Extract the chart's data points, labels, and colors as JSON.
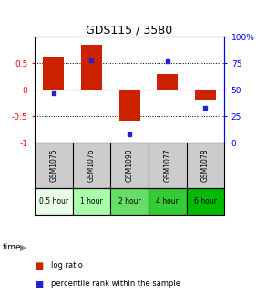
{
  "title": "GDS115 / 3580",
  "samples": [
    "GSM1075",
    "GSM1076",
    "GSM1090",
    "GSM1077",
    "GSM1078"
  ],
  "time_labels": [
    "0.5 hour",
    "1 hour",
    "2 hour",
    "4 hour",
    "6 hour"
  ],
  "time_colors": [
    "#e8ffe8",
    "#aaffaa",
    "#66dd66",
    "#33cc33",
    "#00bb00"
  ],
  "log_ratios": [
    0.62,
    0.85,
    -0.58,
    0.3,
    -0.18
  ],
  "percentile_ranks": [
    47,
    78,
    8,
    77,
    33
  ],
  "bar_color": "#cc2200",
  "dot_color": "#2222cc",
  "ylim": [
    -1.0,
    1.0
  ],
  "y_ticks_left": [
    -1,
    -0.5,
    0,
    0.5
  ],
  "y_ticks_right": [
    0,
    25,
    50,
    75,
    100
  ],
  "zero_line_color": "#cc0000",
  "bg_color": "#ffffff",
  "label_log_ratio": "log ratio",
  "label_percentile": "percentile rank within the sample",
  "time_row_label": "time"
}
